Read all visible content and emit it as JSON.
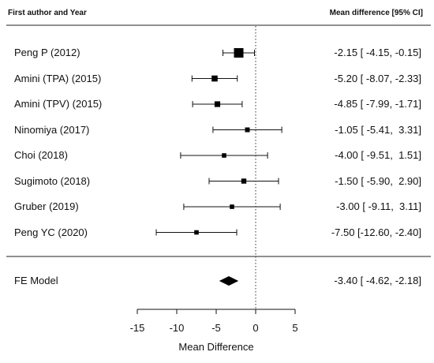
{
  "header": {
    "left": "First author and Year",
    "right": "Mean difference [95% CI]"
  },
  "chart_data": {
    "type": "forest",
    "xlabel": "Mean Difference",
    "xlim": [
      -15,
      5
    ],
    "ticks": [
      -15,
      -10,
      -5,
      0,
      5
    ],
    "tick_labels": [
      "-15",
      "-10",
      "-5",
      "0",
      "5"
    ],
    "reference_line": 0,
    "studies": [
      {
        "label": "Peng P (2012)",
        "mean": -2.15,
        "lower": -4.15,
        "upper": -0.15,
        "weight": 1.0,
        "ci_text": "-2.15 [ -4.15, -0.15]"
      },
      {
        "label": "Amini (TPA) (2015)",
        "mean": -5.2,
        "lower": -8.07,
        "upper": -2.33,
        "weight": 0.45,
        "ci_text": "-5.20 [ -8.07, -2.33]"
      },
      {
        "label": "Amini (TPV) (2015)",
        "mean": -4.85,
        "lower": -7.99,
        "upper": -1.71,
        "weight": 0.4,
        "ci_text": "-4.85 [ -7.99, -1.71]"
      },
      {
        "label": "Ninomiya (2017)",
        "mean": -1.05,
        "lower": -5.41,
        "upper": 3.31,
        "weight": 0.25,
        "ci_text": "-1.05 [ -5.41,  3.31]"
      },
      {
        "label": "Choi (2018)",
        "mean": -4.0,
        "lower": -9.51,
        "upper": 1.51,
        "weight": 0.2,
        "ci_text": "-4.00 [ -9.51,  1.51]"
      },
      {
        "label": "Sugimoto (2018)",
        "mean": -1.5,
        "lower": -5.9,
        "upper": 2.9,
        "weight": 0.3,
        "ci_text": "-1.50 [ -5.90,  2.90]"
      },
      {
        "label": "Gruber (2019)",
        "mean": -3.0,
        "lower": -9.11,
        "upper": 3.11,
        "weight": 0.2,
        "ci_text": "-3.00 [ -9.11,  3.11]"
      },
      {
        "label": "Peng YC (2020)",
        "mean": -7.5,
        "lower": -12.6,
        "upper": -2.4,
        "weight": 0.2,
        "ci_text": "-7.50 [-12.60, -2.40]"
      }
    ],
    "summary": {
      "label": "FE Model",
      "mean": -3.4,
      "lower": -4.62,
      "upper": -2.18,
      "ci_text": "-3.40 [ -4.62, -2.18]"
    }
  }
}
